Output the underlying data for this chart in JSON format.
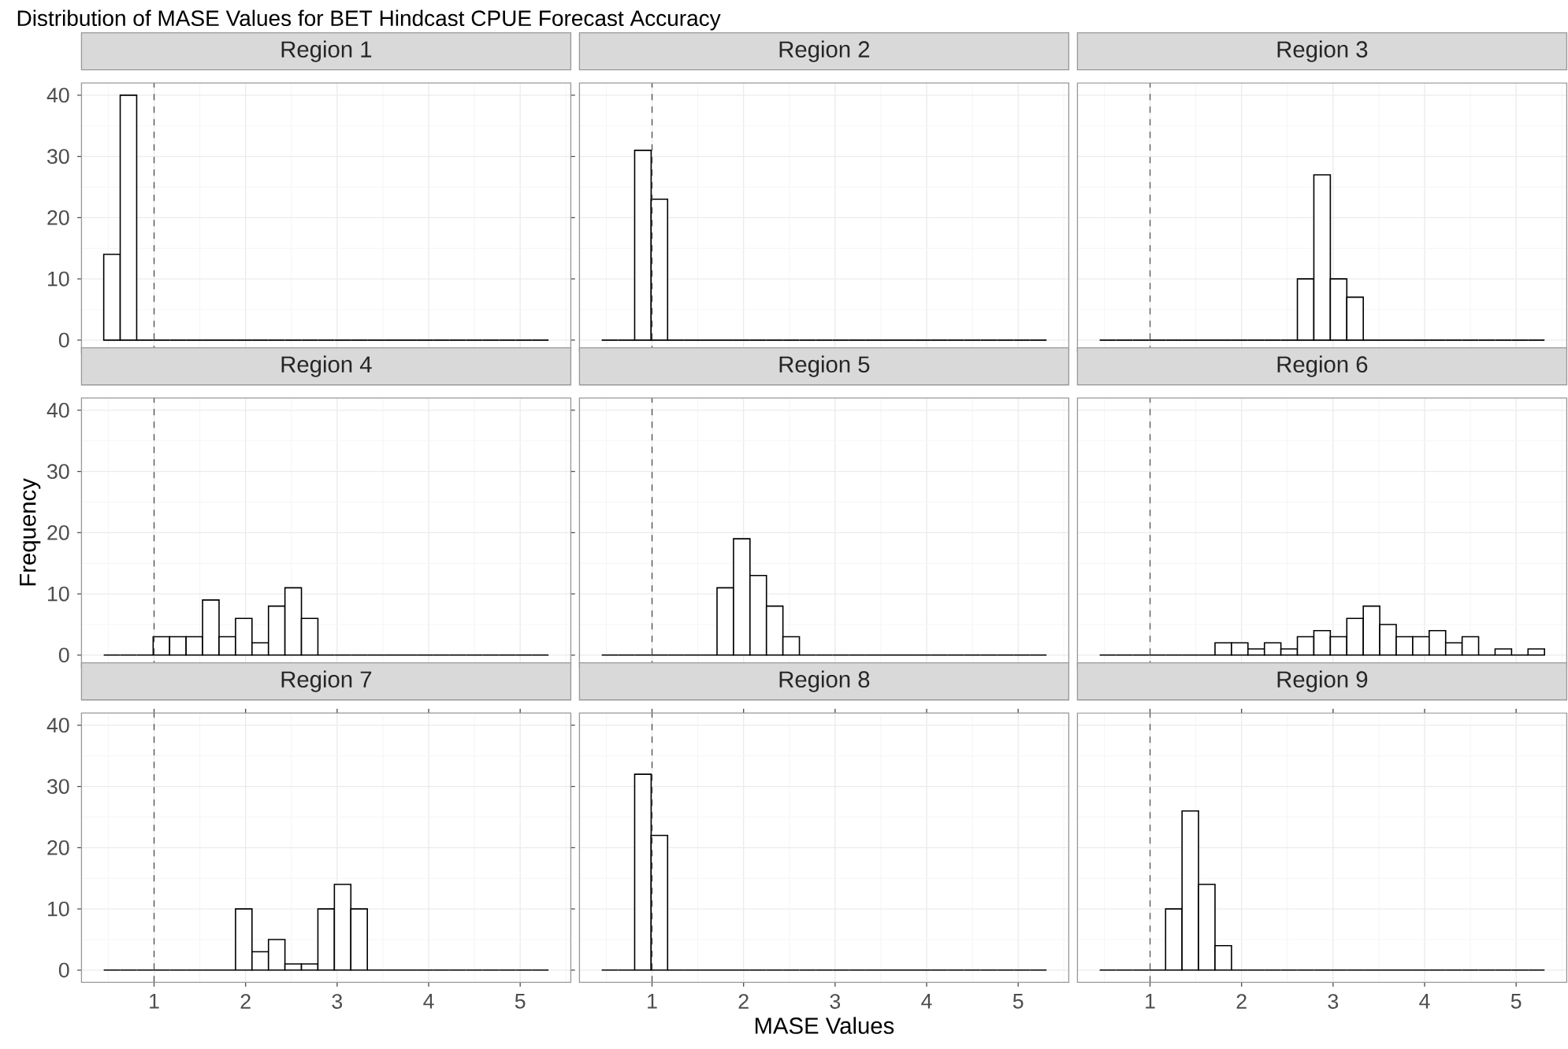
{
  "chart_data": [
    {
      "type": "histogram",
      "title": "Region 1",
      "annotations": [
        "Distribution of MASE Values for BET Hindcast CPUE Forecast Accuracy"
      ],
      "tick_labels": "y",
      "grid": true,
      "xlim": [
        0.207,
        5.553
      ],
      "ylim": [
        -2,
        42
      ],
      "xticks": [
        1,
        2,
        3,
        4,
        5
      ],
      "yticks": [
        0,
        10,
        20,
        30,
        40
      ],
      "ref_lines": [
        {
          "axis": "x",
          "value": 1,
          "line_style": "dashed"
        }
      ],
      "bins": [
        0.45,
        0.63,
        0.81,
        0.99,
        1.17,
        1.35,
        1.53,
        1.71,
        1.89,
        2.07,
        2.25,
        2.43,
        2.61,
        2.79,
        2.97,
        3.15,
        3.33,
        3.51,
        3.69,
        3.87,
        4.05,
        4.23,
        4.41,
        4.59,
        4.77,
        4.95,
        5.13,
        5.31
      ],
      "values": [
        14,
        40,
        0,
        0,
        0,
        0,
        0,
        0,
        0,
        0,
        0,
        0,
        0,
        0,
        0,
        0,
        0,
        0,
        0,
        0,
        0,
        0,
        0,
        0,
        0,
        0,
        0
      ]
    },
    {
      "type": "histogram",
      "title": "Region 2",
      "tick_labels": false,
      "grid": true,
      "xlim": [
        0.207,
        5.553
      ],
      "ylim": [
        -2,
        42
      ],
      "xticks": [
        1,
        2,
        3,
        4,
        5
      ],
      "yticks": [
        0,
        10,
        20,
        30,
        40
      ],
      "ref_lines": [
        {
          "axis": "x",
          "value": 1,
          "line_style": "dashed"
        }
      ],
      "bins": [
        0.45,
        0.63,
        0.81,
        0.99,
        1.17,
        1.35,
        1.53,
        1.71,
        1.89,
        2.07,
        2.25,
        2.43,
        2.61,
        2.79,
        2.97,
        3.15,
        3.33,
        3.51,
        3.69,
        3.87,
        4.05,
        4.23,
        4.41,
        4.59,
        4.77,
        4.95,
        5.13,
        5.31
      ],
      "values": [
        0,
        0,
        31,
        23,
        0,
        0,
        0,
        0,
        0,
        0,
        0,
        0,
        0,
        0,
        0,
        0,
        0,
        0,
        0,
        0,
        0,
        0,
        0,
        0,
        0,
        0,
        0
      ]
    },
    {
      "type": "histogram",
      "title": "Region 3",
      "tick_labels": false,
      "grid": true,
      "xlim": [
        0.207,
        5.553
      ],
      "ylim": [
        -2,
        42
      ],
      "xticks": [
        1,
        2,
        3,
        4,
        5
      ],
      "yticks": [
        0,
        10,
        20,
        30,
        40
      ],
      "ref_lines": [
        {
          "axis": "x",
          "value": 1,
          "line_style": "dashed"
        }
      ],
      "bins": [
        0.45,
        0.63,
        0.81,
        0.99,
        1.17,
        1.35,
        1.53,
        1.71,
        1.89,
        2.07,
        2.25,
        2.43,
        2.61,
        2.79,
        2.97,
        3.15,
        3.33,
        3.51,
        3.69,
        3.87,
        4.05,
        4.23,
        4.41,
        4.59,
        4.77,
        4.95,
        5.13,
        5.31
      ],
      "values": [
        0,
        0,
        0,
        0,
        0,
        0,
        0,
        0,
        0,
        0,
        0,
        0,
        10,
        27,
        10,
        7,
        0,
        0,
        0,
        0,
        0,
        0,
        0,
        0,
        0,
        0,
        0
      ]
    },
    {
      "type": "histogram",
      "title": "Region 4",
      "ylabel": "Frequency",
      "tick_labels": "y",
      "grid": true,
      "xlim": [
        0.207,
        5.553
      ],
      "ylim": [
        -2,
        42
      ],
      "xticks": [
        1,
        2,
        3,
        4,
        5
      ],
      "yticks": [
        0,
        10,
        20,
        30,
        40
      ],
      "ref_lines": [
        {
          "axis": "x",
          "value": 1,
          "line_style": "dashed"
        }
      ],
      "bins": [
        0.45,
        0.63,
        0.81,
        0.99,
        1.17,
        1.35,
        1.53,
        1.71,
        1.89,
        2.07,
        2.25,
        2.43,
        2.61,
        2.79,
        2.97,
        3.15,
        3.33,
        3.51,
        3.69,
        3.87,
        4.05,
        4.23,
        4.41,
        4.59,
        4.77,
        4.95,
        5.13,
        5.31
      ],
      "values": [
        0,
        0,
        0,
        3,
        3,
        3,
        9,
        3,
        6,
        2,
        8,
        11,
        6,
        0,
        0,
        0,
        0,
        0,
        0,
        0,
        0,
        0,
        0,
        0,
        0,
        0,
        0
      ]
    },
    {
      "type": "histogram",
      "title": "Region 5",
      "tick_labels": false,
      "grid": true,
      "xlim": [
        0.207,
        5.553
      ],
      "ylim": [
        -2,
        42
      ],
      "xticks": [
        1,
        2,
        3,
        4,
        5
      ],
      "yticks": [
        0,
        10,
        20,
        30,
        40
      ],
      "ref_lines": [
        {
          "axis": "x",
          "value": 1,
          "line_style": "dashed"
        }
      ],
      "bins": [
        0.45,
        0.63,
        0.81,
        0.99,
        1.17,
        1.35,
        1.53,
        1.71,
        1.89,
        2.07,
        2.25,
        2.43,
        2.61,
        2.79,
        2.97,
        3.15,
        3.33,
        3.51,
        3.69,
        3.87,
        4.05,
        4.23,
        4.41,
        4.59,
        4.77,
        4.95,
        5.13,
        5.31
      ],
      "values": [
        0,
        0,
        0,
        0,
        0,
        0,
        0,
        11,
        19,
        13,
        8,
        3,
        0,
        0,
        0,
        0,
        0,
        0,
        0,
        0,
        0,
        0,
        0,
        0,
        0,
        0,
        0
      ]
    },
    {
      "type": "histogram",
      "title": "Region 6",
      "tick_labels": false,
      "grid": true,
      "xlim": [
        0.207,
        5.553
      ],
      "ylim": [
        -2,
        42
      ],
      "xticks": [
        1,
        2,
        3,
        4,
        5
      ],
      "yticks": [
        0,
        10,
        20,
        30,
        40
      ],
      "ref_lines": [
        {
          "axis": "x",
          "value": 1,
          "line_style": "dashed"
        }
      ],
      "bins": [
        0.45,
        0.63,
        0.81,
        0.99,
        1.17,
        1.35,
        1.53,
        1.71,
        1.89,
        2.07,
        2.25,
        2.43,
        2.61,
        2.79,
        2.97,
        3.15,
        3.33,
        3.51,
        3.69,
        3.87,
        4.05,
        4.23,
        4.41,
        4.59,
        4.77,
        4.95,
        5.13,
        5.31
      ],
      "values": [
        0,
        0,
        0,
        0,
        0,
        0,
        0,
        2,
        2,
        1,
        2,
        1,
        3,
        4,
        3,
        6,
        8,
        5,
        3,
        3,
        4,
        2,
        3,
        0,
        1,
        0,
        1
      ]
    },
    {
      "type": "histogram",
      "title": "Region 7",
      "grid": true,
      "xlim": [
        0.207,
        5.553
      ],
      "ylim": [
        -2,
        42
      ],
      "xticks": [
        1,
        2,
        3,
        4,
        5
      ],
      "yticks": [
        0,
        10,
        20,
        30,
        40
      ],
      "ref_lines": [
        {
          "axis": "x",
          "value": 1,
          "line_style": "dashed"
        }
      ],
      "bins": [
        0.45,
        0.63,
        0.81,
        0.99,
        1.17,
        1.35,
        1.53,
        1.71,
        1.89,
        2.07,
        2.25,
        2.43,
        2.61,
        2.79,
        2.97,
        3.15,
        3.33,
        3.51,
        3.69,
        3.87,
        4.05,
        4.23,
        4.41,
        4.59,
        4.77,
        4.95,
        5.13,
        5.31
      ],
      "values": [
        0,
        0,
        0,
        0,
        0,
        0,
        0,
        0,
        10,
        3,
        5,
        1,
        1,
        10,
        14,
        10,
        0,
        0,
        0,
        0,
        0,
        0,
        0,
        0,
        0,
        0,
        0
      ]
    },
    {
      "type": "histogram",
      "title": "Region 8",
      "xlabel": "MASE Values",
      "tick_labels": "x",
      "grid": true,
      "xlim": [
        0.207,
        5.553
      ],
      "ylim": [
        -2,
        42
      ],
      "xticks": [
        1,
        2,
        3,
        4,
        5
      ],
      "yticks": [
        0,
        10,
        20,
        30,
        40
      ],
      "ref_lines": [
        {
          "axis": "x",
          "value": 1,
          "line_style": "dashed"
        }
      ],
      "bins": [
        0.45,
        0.63,
        0.81,
        0.99,
        1.17,
        1.35,
        1.53,
        1.71,
        1.89,
        2.07,
        2.25,
        2.43,
        2.61,
        2.79,
        2.97,
        3.15,
        3.33,
        3.51,
        3.69,
        3.87,
        4.05,
        4.23,
        4.41,
        4.59,
        4.77,
        4.95,
        5.13,
        5.31
      ],
      "values": [
        0,
        0,
        32,
        22,
        0,
        0,
        0,
        0,
        0,
        0,
        0,
        0,
        0,
        0,
        0,
        0,
        0,
        0,
        0,
        0,
        0,
        0,
        0,
        0,
        0,
        0,
        0
      ]
    },
    {
      "type": "histogram",
      "title": "Region 9",
      "tick_labels": "x",
      "grid": true,
      "xlim": [
        0.207,
        5.553
      ],
      "ylim": [
        -2,
        42
      ],
      "xticks": [
        1,
        2,
        3,
        4,
        5
      ],
      "yticks": [
        0,
        10,
        20,
        30,
        40
      ],
      "ref_lines": [
        {
          "axis": "x",
          "value": 1,
          "line_style": "dashed"
        }
      ],
      "bins": [
        0.45,
        0.63,
        0.81,
        0.99,
        1.17,
        1.35,
        1.53,
        1.71,
        1.89,
        2.07,
        2.25,
        2.43,
        2.61,
        2.79,
        2.97,
        3.15,
        3.33,
        3.51,
        3.69,
        3.87,
        4.05,
        4.23,
        4.41,
        4.59,
        4.77,
        4.95,
        5.13,
        5.31
      ],
      "values": [
        0,
        0,
        0,
        0,
        10,
        26,
        14,
        4,
        0,
        0,
        0,
        0,
        0,
        0,
        0,
        0,
        0,
        0,
        0,
        0,
        0,
        0,
        0,
        0,
        0,
        0,
        0
      ]
    }
  ]
}
